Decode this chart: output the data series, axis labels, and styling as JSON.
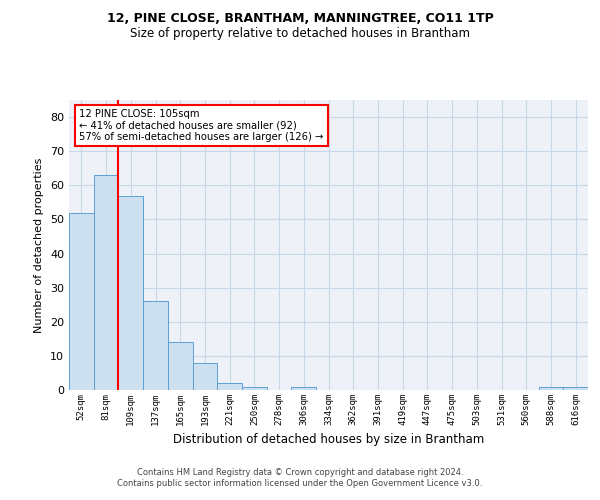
{
  "title1": "12, PINE CLOSE, BRANTHAM, MANNINGTREE, CO11 1TP",
  "title2": "Size of property relative to detached houses in Brantham",
  "xlabel": "Distribution of detached houses by size in Brantham",
  "ylabel": "Number of detached properties",
  "categories": [
    "52sqm",
    "81sqm",
    "109sqm",
    "137sqm",
    "165sqm",
    "193sqm",
    "221sqm",
    "250sqm",
    "278sqm",
    "306sqm",
    "334sqm",
    "362sqm",
    "391sqm",
    "419sqm",
    "447sqm",
    "475sqm",
    "503sqm",
    "531sqm",
    "560sqm",
    "588sqm",
    "616sqm"
  ],
  "values": [
    52,
    63,
    57,
    26,
    14,
    8,
    2,
    1,
    0,
    1,
    0,
    0,
    0,
    0,
    0,
    0,
    0,
    0,
    0,
    1,
    1
  ],
  "bar_color": "#cce0f0",
  "bar_edge_color": "#5a9fd4",
  "grid_color": "#c8d8e8",
  "vline_color": "red",
  "annotation_line1": "12 PINE CLOSE: 105sqm",
  "annotation_line2": "← 41% of detached houses are smaller (92)",
  "annotation_line3": "57% of semi-detached houses are larger (126) →",
  "annotation_box_color": "white",
  "annotation_box_edge": "red",
  "ylim": [
    0,
    85
  ],
  "yticks": [
    0,
    10,
    20,
    30,
    40,
    50,
    60,
    70,
    80
  ],
  "footer": "Contains HM Land Registry data © Crown copyright and database right 2024.\nContains public sector information licensed under the Open Government Licence v3.0.",
  "bg_color": "#eef2f8",
  "title1_fontsize": 9,
  "title2_fontsize": 8.5
}
